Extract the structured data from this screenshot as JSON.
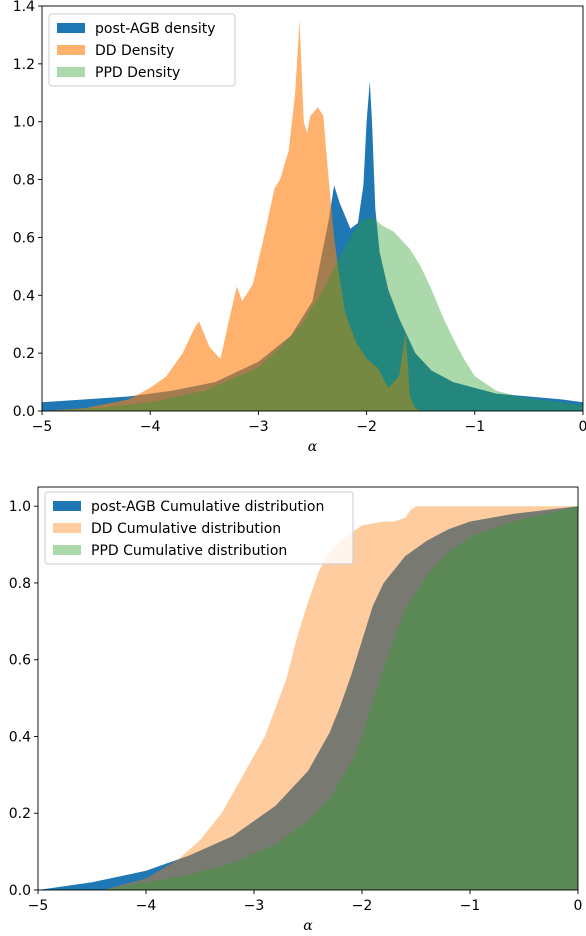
{
  "chart_data": [
    {
      "type": "area",
      "title": "",
      "xlabel": "α",
      "ylabel": "",
      "xlim": [
        -5,
        0
      ],
      "ylim": [
        0,
        1.4
      ],
      "xticks": [
        "−5",
        "−4",
        "−3",
        "−2",
        "−1",
        "0"
      ],
      "yticks": [
        "0.0",
        "0.2",
        "0.4",
        "0.6",
        "0.8",
        "1.0",
        "1.2",
        "1.4"
      ],
      "grid": false,
      "legend_position": "top-left",
      "series": [
        {
          "name": "post-AGB density",
          "color": "#1f77b4",
          "opacity": 1.0,
          "x": [
            -5,
            -4.6,
            -4.2,
            -3.8,
            -3.4,
            -3.0,
            -2.7,
            -2.5,
            -2.35,
            -2.3,
            -2.25,
            -2.15,
            -2.08,
            -2.03,
            -2.0,
            -1.97,
            -1.95,
            -1.92,
            -1.88,
            -1.8,
            -1.7,
            -1.55,
            -1.4,
            -1.2,
            -1.0,
            -0.8,
            -0.5,
            -0.2,
            0
          ],
          "y": [
            0.03,
            0.04,
            0.05,
            0.07,
            0.1,
            0.17,
            0.26,
            0.38,
            0.66,
            0.78,
            0.72,
            0.63,
            0.65,
            0.78,
            1.0,
            1.14,
            1.0,
            0.7,
            0.55,
            0.42,
            0.32,
            0.2,
            0.14,
            0.1,
            0.08,
            0.06,
            0.05,
            0.04,
            0.03
          ]
        },
        {
          "name": "DD Density",
          "color": "#ff7f0e",
          "opacity": 0.6,
          "x": [
            -5,
            -4.6,
            -4.2,
            -4.0,
            -3.85,
            -3.7,
            -3.6,
            -3.55,
            -3.45,
            -3.35,
            -3.28,
            -3.2,
            -3.15,
            -3.05,
            -2.95,
            -2.85,
            -2.8,
            -2.72,
            -2.66,
            -2.62,
            -2.58,
            -2.55,
            -2.52,
            -2.45,
            -2.4,
            -2.35,
            -2.3,
            -2.25,
            -2.2,
            -2.1,
            -2.0,
            -1.9,
            -1.8,
            -1.7,
            -1.64,
            -1.6,
            -1.55,
            -1.5,
            -1.45,
            -1.4,
            -1.2,
            -1.0,
            0
          ],
          "y": [
            0.0,
            0.01,
            0.04,
            0.08,
            0.12,
            0.2,
            0.28,
            0.31,
            0.22,
            0.18,
            0.3,
            0.43,
            0.38,
            0.44,
            0.6,
            0.77,
            0.8,
            0.9,
            1.1,
            1.35,
            1.0,
            0.96,
            1.02,
            1.05,
            1.02,
            0.8,
            0.6,
            0.46,
            0.34,
            0.24,
            0.18,
            0.15,
            0.08,
            0.12,
            0.27,
            0.05,
            0.01,
            0.0,
            0.0,
            0.0,
            0.0,
            0.0,
            0.0
          ]
        },
        {
          "name": "PPD Density",
          "color": "#2ca02c",
          "opacity": 0.4,
          "x": [
            -5,
            -4.5,
            -4.0,
            -3.5,
            -3.0,
            -2.8,
            -2.6,
            -2.4,
            -2.2,
            -2.05,
            -1.95,
            -1.85,
            -1.75,
            -1.6,
            -1.5,
            -1.4,
            -1.3,
            -1.2,
            -1.1,
            -1.0,
            -0.8,
            -0.6,
            -0.4,
            -0.2,
            0
          ],
          "y": [
            0.0,
            0.01,
            0.03,
            0.07,
            0.15,
            0.22,
            0.3,
            0.42,
            0.57,
            0.66,
            0.67,
            0.64,
            0.62,
            0.56,
            0.5,
            0.42,
            0.33,
            0.25,
            0.18,
            0.12,
            0.07,
            0.05,
            0.04,
            0.03,
            0.02
          ]
        }
      ]
    },
    {
      "type": "area",
      "title": "",
      "xlabel": "α",
      "ylabel": "",
      "xlim": [
        -5,
        0
      ],
      "ylim": [
        0,
        1.05
      ],
      "xticks": [
        "−5",
        "−4",
        "−3",
        "−2",
        "−1",
        "0"
      ],
      "yticks": [
        "0.0",
        "0.2",
        "0.4",
        "0.6",
        "0.8",
        "1.0"
      ],
      "grid": false,
      "legend_position": "top-left",
      "series": [
        {
          "name": "post-AGB Cumulative distribution",
          "color": "#1f77b4",
          "opacity": 1.0,
          "x": [
            -5,
            -4.5,
            -4.0,
            -3.6,
            -3.2,
            -2.8,
            -2.5,
            -2.3,
            -2.2,
            -2.1,
            -2.0,
            -1.9,
            -1.8,
            -1.6,
            -1.4,
            -1.2,
            -1.0,
            -0.6,
            -0.3,
            0
          ],
          "y": [
            0.0,
            0.02,
            0.05,
            0.09,
            0.14,
            0.22,
            0.31,
            0.41,
            0.48,
            0.56,
            0.65,
            0.74,
            0.8,
            0.87,
            0.91,
            0.94,
            0.96,
            0.98,
            0.99,
            1.0
          ]
        },
        {
          "name": "DD Cumulative distribution",
          "color": "#ff7f0e",
          "opacity": 0.4,
          "x": [
            -5,
            -4.4,
            -4.0,
            -3.7,
            -3.5,
            -3.3,
            -3.1,
            -2.9,
            -2.7,
            -2.6,
            -2.5,
            -2.4,
            -2.3,
            -2.2,
            -2.1,
            -2.0,
            -1.9,
            -1.8,
            -1.7,
            -1.6,
            -1.55,
            -1.5,
            -1.3,
            -1.0,
            0
          ],
          "y": [
            0.0,
            0.0,
            0.03,
            0.08,
            0.13,
            0.2,
            0.3,
            0.4,
            0.55,
            0.66,
            0.75,
            0.83,
            0.88,
            0.91,
            0.93,
            0.95,
            0.955,
            0.96,
            0.96,
            0.97,
            0.99,
            1.0,
            1.0,
            1.0,
            1.0
          ]
        },
        {
          "name": "PPD Cumulative distribution",
          "color": "#2ca02c",
          "opacity": 0.4,
          "x": [
            -5,
            -4.4,
            -4.0,
            -3.6,
            -3.2,
            -2.8,
            -2.5,
            -2.3,
            -2.1,
            -2.0,
            -1.9,
            -1.8,
            -1.6,
            -1.4,
            -1.2,
            -1.0,
            -0.6,
            -0.3,
            0
          ],
          "y": [
            0.0,
            0.0,
            0.02,
            0.04,
            0.07,
            0.12,
            0.18,
            0.24,
            0.33,
            0.4,
            0.49,
            0.58,
            0.73,
            0.82,
            0.88,
            0.92,
            0.96,
            0.98,
            1.0
          ]
        }
      ]
    }
  ]
}
